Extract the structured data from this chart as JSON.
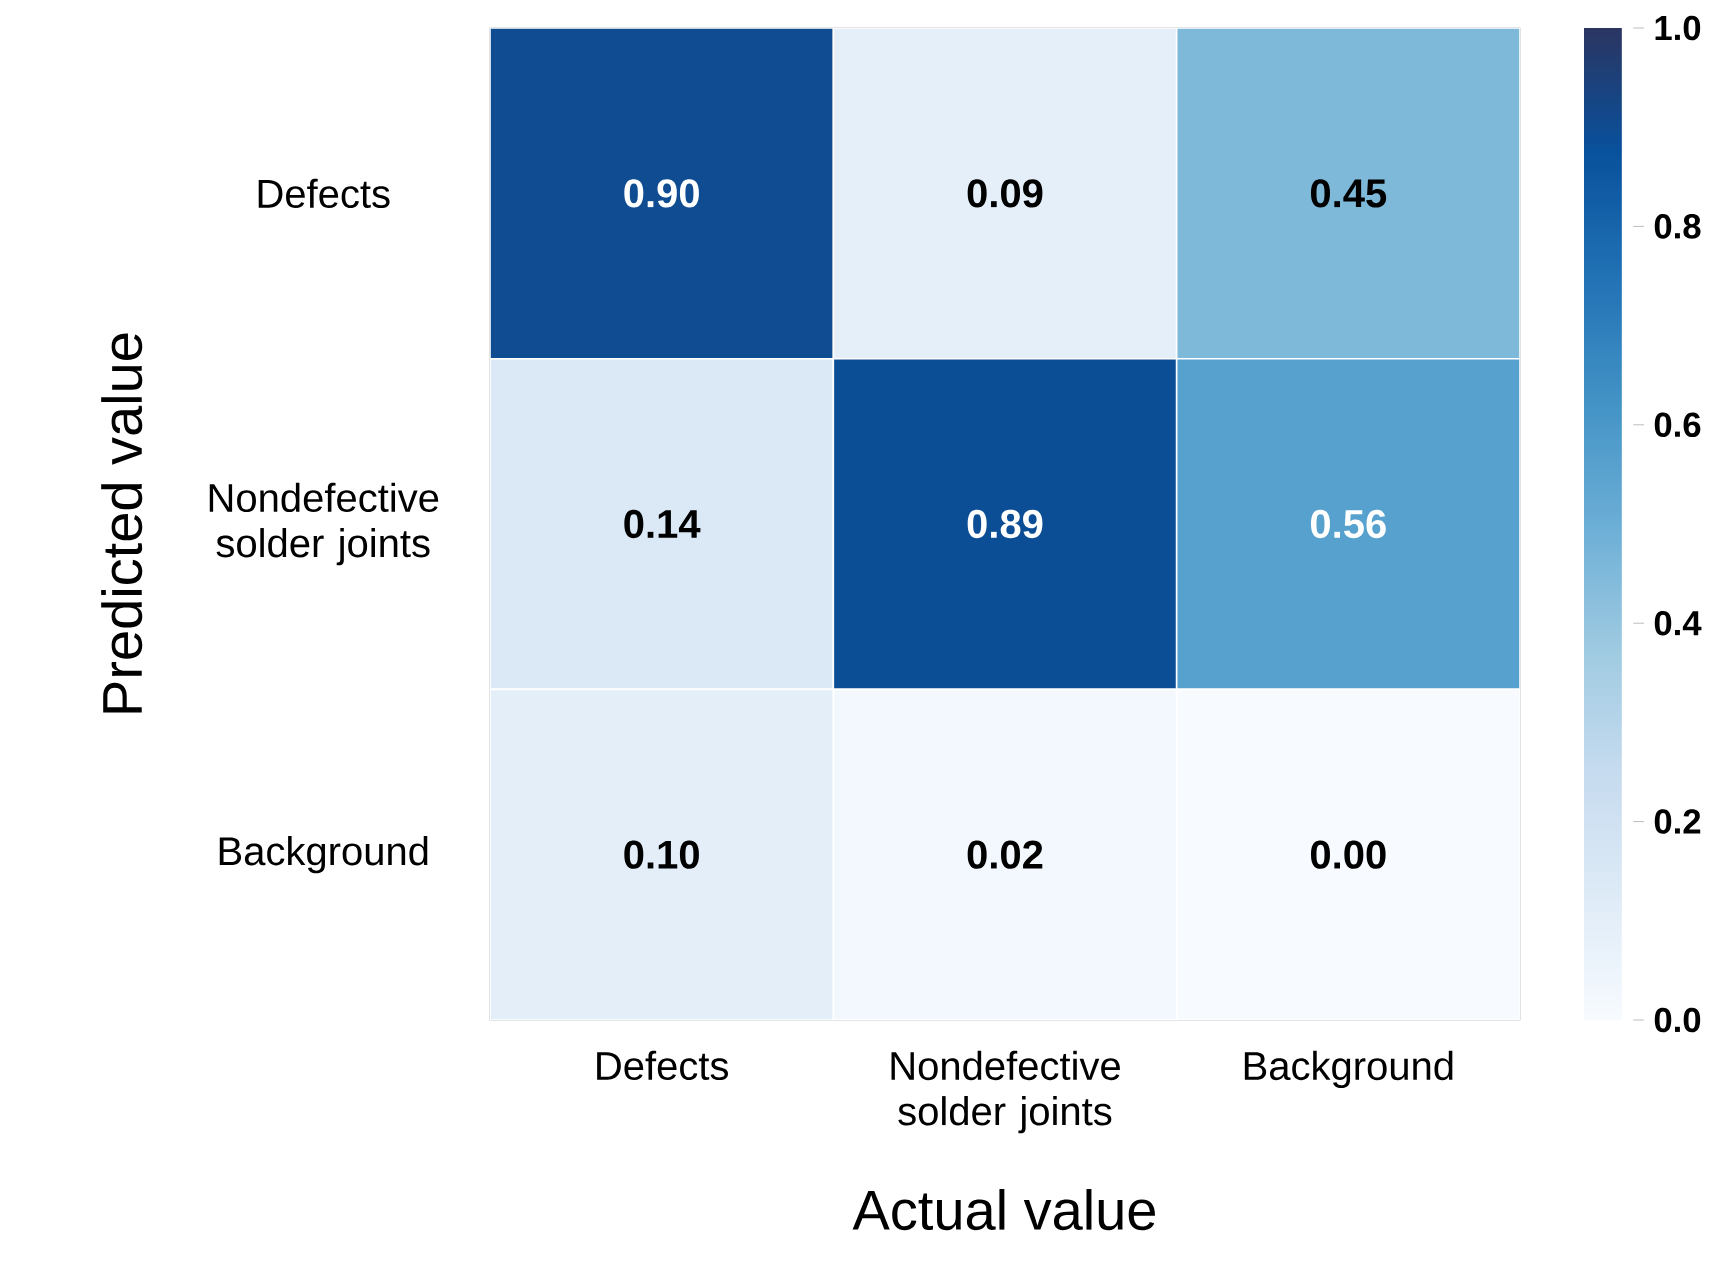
{
  "chart_data": {
    "type": "heatmap",
    "xlabel": "Actual value",
    "ylabel": "Predicted value",
    "categories": [
      "Defects",
      "Nondefective solder joints",
      "Background"
    ],
    "y_categories": [
      "Defects",
      "Nondefective solder joints",
      "Background"
    ],
    "cells": [
      [
        0.9,
        0.09,
        0.45
      ],
      [
        0.14,
        0.89,
        0.56
      ],
      [
        0.1,
        0.02,
        0.0
      ]
    ],
    "cell_labels": [
      [
        "0.90",
        "0.09",
        "0.45"
      ],
      [
        "0.14",
        "0.89",
        "0.56"
      ],
      [
        "0.10",
        "0.02",
        "0.00"
      ]
    ],
    "clim": [
      0,
      1
    ],
    "cticks": [
      {
        "value": 0,
        "label": "0.0"
      },
      {
        "value": 0.2,
        "label": "0.2"
      },
      {
        "value": 0.4,
        "label": "0.4"
      },
      {
        "value": 0.6,
        "label": "0.6"
      },
      {
        "value": 0.8,
        "label": "0.8"
      },
      {
        "value": 1,
        "label": "1.0"
      }
    ]
  }
}
